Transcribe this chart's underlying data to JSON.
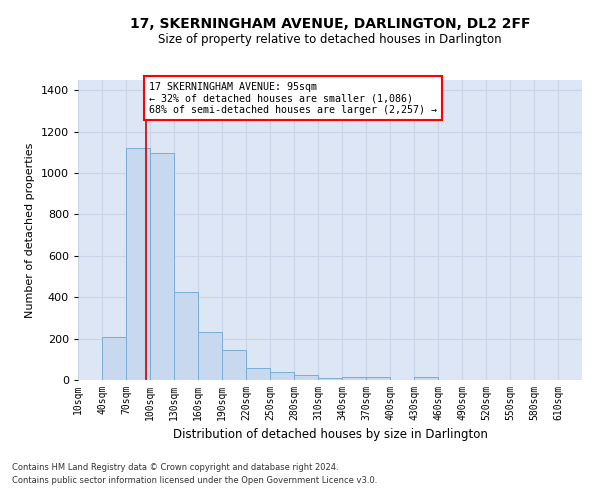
{
  "title": "17, SKERNINGHAM AVENUE, DARLINGTON, DL2 2FF",
  "subtitle": "Size of property relative to detached houses in Darlington",
  "xlabel": "Distribution of detached houses by size in Darlington",
  "ylabel": "Number of detached properties",
  "footer_line1": "Contains HM Land Registry data © Crown copyright and database right 2024.",
  "footer_line2": "Contains public sector information licensed under the Open Government Licence v3.0.",
  "annotation_title": "17 SKERNINGHAM AVENUE: 95sqm",
  "annotation_line2": "← 32% of detached houses are smaller (1,086)",
  "annotation_line3": "68% of semi-detached houses are larger (2,257) →",
  "bar_color": "#c8d8ee",
  "bar_edge_color": "#7aacd4",
  "grid_color": "#c8d4e8",
  "bg_color": "#dce6f5",
  "vline_x": 95,
  "vline_color": "#cc0000",
  "categories": [
    "10sqm",
    "40sqm",
    "70sqm",
    "100sqm",
    "130sqm",
    "160sqm",
    "190sqm",
    "220sqm",
    "250sqm",
    "280sqm",
    "310sqm",
    "340sqm",
    "370sqm",
    "400sqm",
    "430sqm",
    "460sqm",
    "490sqm",
    "520sqm",
    "550sqm",
    "580sqm",
    "610sqm"
  ],
  "bin_edges": [
    10,
    40,
    70,
    100,
    130,
    160,
    190,
    220,
    250,
    280,
    310,
    340,
    370,
    400,
    430,
    460,
    490,
    520,
    550,
    580,
    610,
    640
  ],
  "values": [
    0,
    210,
    1120,
    1095,
    425,
    230,
    145,
    57,
    38,
    25,
    10,
    15,
    15,
    0,
    15,
    0,
    0,
    0,
    0,
    0,
    0
  ],
  "ylim": [
    0,
    1450
  ],
  "yticks": [
    0,
    200,
    400,
    600,
    800,
    1000,
    1200,
    1400
  ]
}
